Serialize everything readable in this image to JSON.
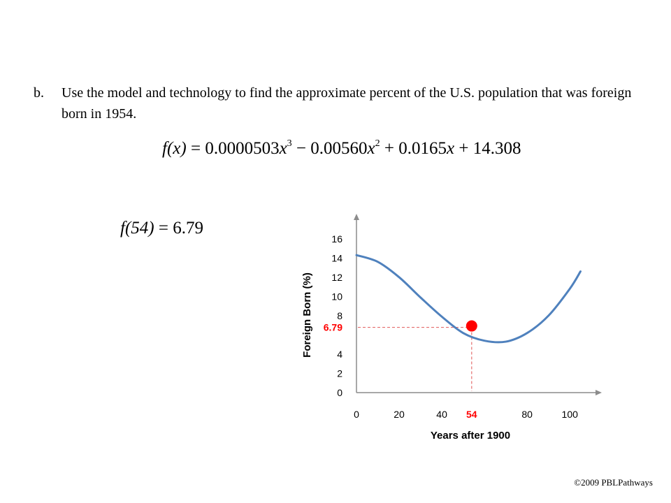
{
  "question": {
    "marker": "b.",
    "text": "Use the model and technology to find the approximate percent of the U.S. population that was foreign born in 1954."
  },
  "model": {
    "lhs": "f(x)",
    "equals": " = ",
    "coef_cubic": "0.0000503",
    "coef_quadratic": "0.00560",
    "coef_linear": "0.0165",
    "constant": "14.308",
    "variable": "x",
    "exp_cubic": "3",
    "exp_quadratic": "2",
    "minus": " − ",
    "plus": " + "
  },
  "result": {
    "lhs": "f(54)",
    "equals": " = ",
    "value": "6.79"
  },
  "chart_data": {
    "type": "line",
    "xlabel": "Years after 1900",
    "ylabel": "Foreign Born (%)",
    "xlim": [
      0,
      115
    ],
    "ylim": [
      0,
      17
    ],
    "x_ticks": [
      0,
      20,
      40,
      80,
      100
    ],
    "y_ticks": [
      0,
      2,
      4,
      8,
      10,
      12,
      14,
      16
    ],
    "grid": false,
    "series": [
      {
        "x": [
          0,
          10,
          20,
          30,
          40,
          50,
          60,
          70,
          80,
          90,
          100,
          105
        ],
        "y": [
          14.3,
          13.6,
          12.0,
          9.9,
          7.9,
          6.2,
          5.4,
          5.3,
          6.2,
          8.0,
          10.8,
          12.6
        ],
        "color": "#4f81bd"
      }
    ],
    "highlight": {
      "x": 54,
      "y": 6.79,
      "x_label": "54",
      "y_label": "6.79",
      "color": "#ff0000"
    },
    "highlight_dash_color": "#e46c6c"
  },
  "footer": {
    "copyright": "©2009 PBLPathways"
  }
}
